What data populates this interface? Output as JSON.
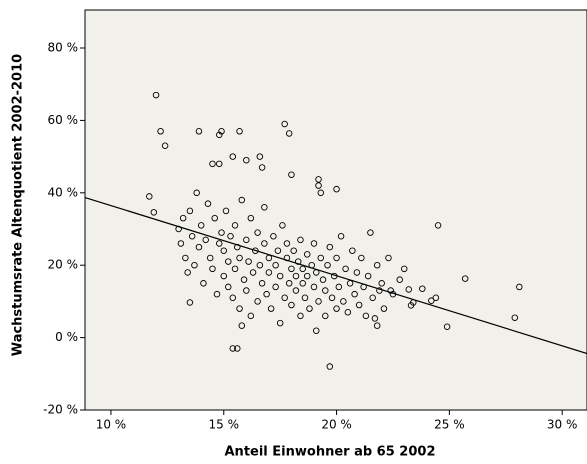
{
  "chart_data": {
    "type": "scatter",
    "x_label": "Anteil Einwohner ab 65 2002",
    "y_label": "Wachstumsrate Altenquotient 2002-2010",
    "xlim": [
      8.85,
      31.1
    ],
    "ylim": [
      -20,
      90.5
    ],
    "xticks": [
      {
        "value": 10,
        "label": "10 %"
      },
      {
        "value": 15,
        "label": "15 %"
      },
      {
        "value": 20,
        "label": "20 %"
      },
      {
        "value": 25,
        "label": "25 %"
      },
      {
        "value": 30,
        "label": "30 %"
      }
    ],
    "yticks": [
      {
        "value": -20,
        "label": "-20 %"
      },
      {
        "value": 0,
        "label": "0 %"
      },
      {
        "value": 20,
        "label": "20 %"
      },
      {
        "value": 40,
        "label": "40 %"
      },
      {
        "value": 60,
        "label": "60 %"
      },
      {
        "value": 80,
        "label": "80 %"
      }
    ],
    "color": "#000000",
    "background": "#f1f0ea",
    "x": [
      12.0,
      12.2,
      12.4,
      11.7,
      11.9,
      13.9,
      14.8,
      14.9,
      15.7,
      17.7,
      17.9,
      15.4,
      16.0,
      16.6,
      16.7,
      14.5,
      14.8,
      18.0,
      19.2,
      19.2,
      20.0,
      19.3,
      24.5,
      25.7,
      28.1,
      27.9,
      24.9,
      15.4,
      15.6,
      19.7,
      13.5,
      15.8,
      19.1,
      23.3,
      23.4,
      24.2,
      24.4,
      23.8,
      23.2,
      21.9,
      21.8,
      21.7,
      22.4,
      13.0,
      13.1,
      13.2,
      13.3,
      13.4,
      13.5,
      13.6,
      13.7,
      13.8,
      13.9,
      14.0,
      14.1,
      14.2,
      14.3,
      14.4,
      14.5,
      14.6,
      14.7,
      14.8,
      14.9,
      15.0,
      15.0,
      15.1,
      15.2,
      15.2,
      15.3,
      15.4,
      15.5,
      15.5,
      15.6,
      15.7,
      15.7,
      15.8,
      15.9,
      16.0,
      16.0,
      16.1,
      16.2,
      16.2,
      16.3,
      16.4,
      16.5,
      16.5,
      16.6,
      16.7,
      16.8,
      16.8,
      16.9,
      17.0,
      17.0,
      17.1,
      17.2,
      17.3,
      17.3,
      17.4,
      17.5,
      17.5,
      17.6,
      17.7,
      17.8,
      17.8,
      17.9,
      18.0,
      18.0,
      18.1,
      18.2,
      18.2,
      18.3,
      18.4,
      18.4,
      18.5,
      18.5,
      18.6,
      18.7,
      18.7,
      18.8,
      18.9,
      19.0,
      19.0,
      19.1,
      19.2,
      19.3,
      19.4,
      19.5,
      19.5,
      19.6,
      19.7,
      19.8,
      19.9,
      20.0,
      20.0,
      20.1,
      20.2,
      20.3,
      20.4,
      20.5,
      20.6,
      20.7,
      20.8,
      20.9,
      21.0,
      21.1,
      21.2,
      21.3,
      21.4,
      21.5,
      21.6,
      21.8,
      22.0,
      22.1,
      22.3,
      22.5,
      22.8,
      23.0
    ],
    "values": [
      67,
      57,
      53,
      39,
      34.6,
      57,
      56,
      57,
      57,
      59,
      56.4,
      50,
      49,
      50,
      47,
      48,
      48,
      45,
      43.7,
      42,
      41,
      40,
      31,
      16.3,
      14,
      5.5,
      3,
      -3,
      -3,
      -8,
      9.7,
      3.3,
      1.9,
      8.9,
      9.7,
      10.2,
      11,
      13.5,
      13.3,
      13,
      3.3,
      5.3,
      13,
      30,
      26,
      33,
      22,
      18,
      35,
      28,
      20,
      40,
      25,
      31,
      15,
      27,
      37,
      22,
      19,
      33,
      12,
      26,
      29,
      17,
      24,
      35,
      21,
      14,
      28,
      11,
      31,
      19,
      25,
      8,
      22,
      38,
      16,
      27,
      13,
      21,
      33,
      6,
      18,
      24,
      10,
      29,
      20,
      15,
      26,
      36,
      12,
      22,
      18,
      8,
      28,
      14,
      20,
      24,
      4,
      17,
      31,
      11,
      22,
      26,
      15,
      19,
      9,
      24,
      13,
      17,
      21,
      6,
      27,
      15,
      19,
      11,
      23,
      17,
      8,
      20,
      14,
      26,
      18,
      10,
      22,
      16,
      6,
      13,
      20,
      25,
      11,
      17,
      8,
      22,
      14,
      28,
      10,
      19,
      7,
      15,
      24,
      12,
      18,
      9,
      22,
      14,
      6,
      17,
      29,
      11,
      20,
      15,
      8,
      22,
      12,
      16,
      19
    ],
    "fit_line": {
      "x": [
        8.85,
        31.1
      ],
      "y": [
        38.7,
        -4.4
      ]
    }
  }
}
